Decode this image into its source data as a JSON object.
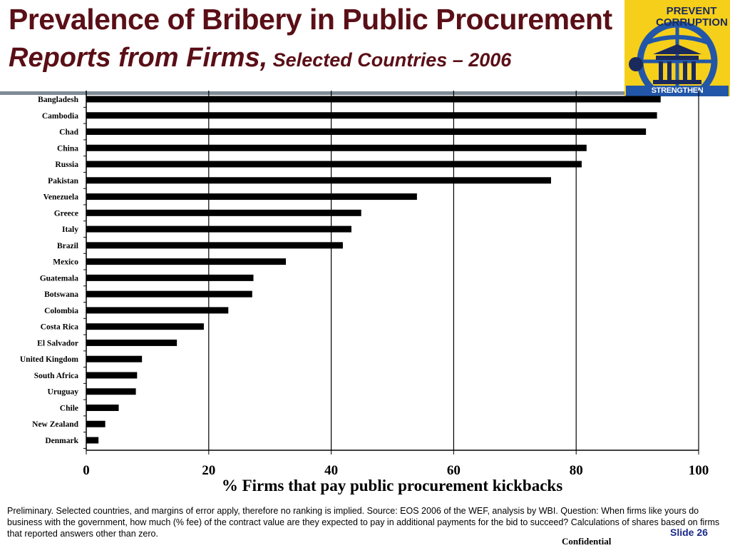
{
  "header": {
    "title_line1": "Prevalence of Bribery in Public Procurement",
    "title_line2_main": "Reports from Firms,",
    "title_line2_sub": " Selected Countries – 2006"
  },
  "logo": {
    "top_text": "PREVENT CORRUPTION",
    "bottom_text": "STRENGTHEN INSTITUTIONS",
    "colors": {
      "background": "#f6cf1a",
      "globe": "#2256a8"
    }
  },
  "chart_data": {
    "type": "bar",
    "orientation": "horizontal",
    "categories": [
      "Bangladesh",
      "Cambodia",
      "Chad",
      "China",
      "Russia",
      "Pakistan",
      "Venezuela",
      "Greece",
      "Italy",
      "Brazil",
      "Mexico",
      "Guatemala",
      "Botswana",
      "Colombia",
      "Costa Rica",
      "El Salvador",
      "United Kingdom",
      "South Africa",
      "Uruguay",
      "Chile",
      "New Zealand",
      "Denmark"
    ],
    "values": [
      93.8,
      93.2,
      91.4,
      81.7,
      80.9,
      75.9,
      54.0,
      44.9,
      43.3,
      41.9,
      32.6,
      27.3,
      27.1,
      23.2,
      19.2,
      14.8,
      9.1,
      8.3,
      8.1,
      5.3,
      3.1,
      2.0
    ],
    "xticks": [
      "0",
      "20",
      "40",
      "60",
      "80",
      "100"
    ],
    "xlim": [
      0,
      100
    ],
    "xlabel": "% Firms that pay public procurement kickbacks",
    "grid": "vertical",
    "bar_color": "#000000"
  },
  "footer": {
    "note": "Preliminary. Selected countries, and margins of error apply, therefore no ranking is implied. Source: EOS 2006 of the WEF, analysis by WBI.  Question: When firms like yours do business with the government, how much (% fee) of the contract value are they expected to pay in  additional payments for the bid to succeed? Calculations of shares based on firms that reported answers other than zero.",
    "slide": "Slide 26",
    "confidential": "Confidential"
  }
}
